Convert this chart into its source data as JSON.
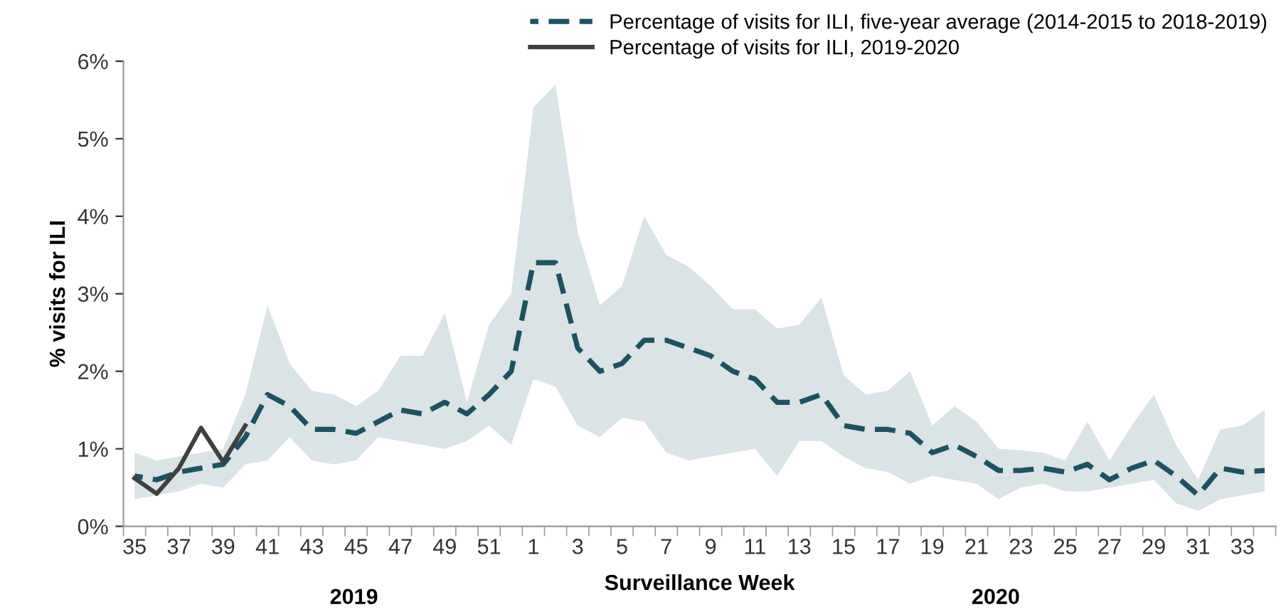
{
  "chart_data": {
    "type": "line",
    "xlabel": "Surveillance Week",
    "ylabel": "% visits for ILI",
    "annotations": [
      "2019",
      "2020"
    ],
    "categories": [
      "35",
      null,
      "37",
      null,
      "39",
      null,
      "41",
      null,
      "43",
      null,
      "45",
      null,
      "47",
      null,
      "49",
      null,
      "51",
      null,
      "1",
      null,
      "3",
      null,
      "5",
      null,
      "7",
      null,
      "9",
      null,
      "11",
      null,
      "13",
      null,
      "15",
      null,
      "17",
      null,
      "19",
      null,
      "21",
      null,
      "23",
      null,
      "25",
      null,
      "27",
      null,
      "29",
      null,
      "31",
      null,
      "33",
      null
    ],
    "series": [
      {
        "name": "Percentage of visits for ILI, five-year average (2014-2015 to 2018-2019)",
        "color": "#1b5362",
        "line_style": "dashed",
        "values": [
          0.65,
          0.6,
          0.7,
          0.75,
          0.8,
          1.15,
          1.7,
          1.55,
          1.25,
          1.25,
          1.2,
          1.35,
          1.5,
          1.45,
          1.6,
          1.45,
          1.7,
          2.0,
          3.4,
          3.4,
          2.3,
          2.0,
          2.1,
          2.4,
          2.4,
          2.3,
          2.2,
          2.0,
          1.9,
          1.6,
          1.6,
          1.7,
          1.3,
          1.25,
          1.25,
          1.2,
          0.95,
          1.05,
          0.9,
          0.72,
          0.72,
          0.75,
          0.7,
          0.8,
          0.6,
          0.75,
          0.85,
          0.65,
          0.4,
          0.75,
          0.7,
          0.72
        ],
        "upper": [
          0.95,
          0.85,
          0.9,
          0.95,
          1.0,
          1.7,
          2.85,
          2.1,
          1.75,
          1.7,
          1.55,
          1.75,
          2.2,
          2.2,
          2.75,
          1.6,
          2.6,
          3.0,
          5.4,
          5.7,
          3.8,
          2.85,
          3.1,
          4.0,
          3.5,
          3.35,
          3.1,
          2.8,
          2.8,
          2.55,
          2.6,
          2.95,
          1.95,
          1.7,
          1.75,
          2.0,
          1.3,
          1.55,
          1.35,
          1.0,
          0.98,
          0.95,
          0.85,
          1.35,
          0.85,
          1.3,
          1.7,
          1.05,
          0.6,
          1.25,
          1.3,
          1.5
        ],
        "lower": [
          0.35,
          0.4,
          0.45,
          0.55,
          0.5,
          0.8,
          0.85,
          1.15,
          0.85,
          0.8,
          0.85,
          1.15,
          1.1,
          1.05,
          1.0,
          1.1,
          1.3,
          1.05,
          1.9,
          1.8,
          1.3,
          1.15,
          1.4,
          1.35,
          0.95,
          0.85,
          0.9,
          0.95,
          1.0,
          0.65,
          1.1,
          1.1,
          0.9,
          0.75,
          0.7,
          0.55,
          0.65,
          0.6,
          0.55,
          0.35,
          0.5,
          0.55,
          0.45,
          0.45,
          0.5,
          0.55,
          0.6,
          0.3,
          0.2,
          0.35,
          0.4,
          0.45
        ]
      },
      {
        "name": "Percentage of visits for ILI, 2019-2020",
        "color": "#404040",
        "line_style": "solid",
        "values": [
          0.62,
          0.42,
          0.75,
          1.27,
          0.83,
          1.3,
          null,
          null,
          null,
          null,
          null,
          null,
          null,
          null,
          null,
          null,
          null,
          null,
          null,
          null,
          null,
          null,
          null,
          null,
          null,
          null,
          null,
          null,
          null,
          null,
          null,
          null,
          null,
          null,
          null,
          null,
          null,
          null,
          null,
          null,
          null,
          null,
          null,
          null,
          null,
          null,
          null,
          null,
          null,
          null,
          null,
          null
        ]
      }
    ],
    "ylim": [
      0,
      6
    ],
    "yticks": [
      {
        "value": 0,
        "label": "0%"
      },
      {
        "value": 1,
        "label": "1%"
      },
      {
        "value": 2,
        "label": "2%"
      },
      {
        "value": 3,
        "label": "3%"
      },
      {
        "value": 4,
        "label": "4%"
      },
      {
        "value": 5,
        "label": "5%"
      },
      {
        "value": 6,
        "label": "6%"
      }
    ],
    "grid": false,
    "legend": "top right",
    "marker": "none"
  }
}
